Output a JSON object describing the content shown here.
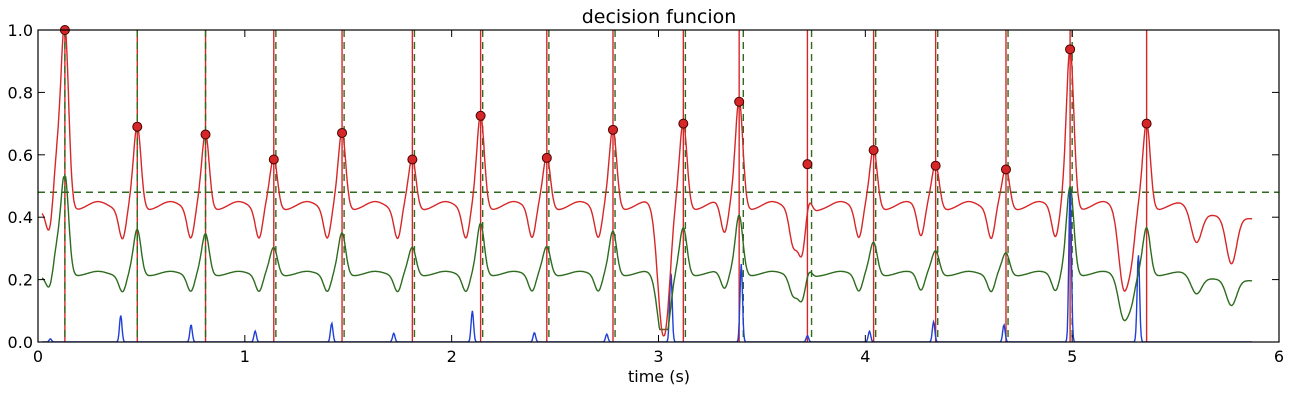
{
  "chart_data": {
    "type": "line",
    "title": "decision funcion",
    "xlabel": "time (s)",
    "ylabel": "",
    "xlim": [
      0,
      6
    ],
    "ylim": [
      0,
      1.0
    ],
    "xticks": [
      0,
      1,
      2,
      3,
      4,
      5,
      6
    ],
    "yticks": [
      0.0,
      0.2,
      0.4,
      0.6,
      0.8,
      1.0
    ],
    "threshold": 0.48,
    "threshold_color": "#2d6b1f",
    "colors": {
      "red": "#d62728",
      "green": "#2d6b1f",
      "blue": "#1f3fd6",
      "marker_edge": "#4a0000"
    },
    "peaks": [
      {
        "x": 0.13,
        "y": 1.0
      },
      {
        "x": 0.48,
        "y": 0.69
      },
      {
        "x": 0.81,
        "y": 0.665
      },
      {
        "x": 1.14,
        "y": 0.585
      },
      {
        "x": 1.47,
        "y": 0.67
      },
      {
        "x": 1.81,
        "y": 0.585
      },
      {
        "x": 2.14,
        "y": 0.725
      },
      {
        "x": 2.46,
        "y": 0.59
      },
      {
        "x": 2.78,
        "y": 0.68
      },
      {
        "x": 3.12,
        "y": 0.7
      },
      {
        "x": 3.39,
        "y": 0.77
      },
      {
        "x": 3.72,
        "y": 0.57
      },
      {
        "x": 4.04,
        "y": 0.615
      },
      {
        "x": 4.34,
        "y": 0.565
      },
      {
        "x": 4.68,
        "y": 0.553
      },
      {
        "x": 4.99,
        "y": 0.938
      },
      {
        "x": 5.36,
        "y": 0.7
      }
    ],
    "red_vlines": [
      0.13,
      0.48,
      0.81,
      1.14,
      1.47,
      1.81,
      2.14,
      2.46,
      2.78,
      3.12,
      3.39,
      3.72,
      4.04,
      4.34,
      4.68,
      4.99,
      5.36
    ],
    "green_dashed_vlines": [
      0.13,
      0.48,
      0.81,
      1.15,
      1.48,
      1.82,
      2.15,
      2.47,
      2.79,
      3.13,
      3.41,
      3.74,
      4.05,
      4.35,
      4.69,
      5.0
    ],
    "blue_spikes": [
      {
        "x": 0.06,
        "y": 0.01
      },
      {
        "x": 0.4,
        "y": 0.085
      },
      {
        "x": 0.74,
        "y": 0.055
      },
      {
        "x": 1.05,
        "y": 0.035
      },
      {
        "x": 1.42,
        "y": 0.06
      },
      {
        "x": 1.72,
        "y": 0.028
      },
      {
        "x": 2.1,
        "y": 0.1
      },
      {
        "x": 2.4,
        "y": 0.03
      },
      {
        "x": 2.75,
        "y": 0.025
      },
      {
        "x": 3.06,
        "y": 0.225
      },
      {
        "x": 3.4,
        "y": 0.25
      },
      {
        "x": 3.72,
        "y": 0.02
      },
      {
        "x": 4.02,
        "y": 0.035
      },
      {
        "x": 4.33,
        "y": 0.065
      },
      {
        "x": 4.67,
        "y": 0.055
      },
      {
        "x": 4.99,
        "y": 0.5
      },
      {
        "x": 5.32,
        "y": 0.28
      }
    ],
    "baseline_red": 0.42,
    "baseline_green": 0.21,
    "x_end": 5.87
  }
}
